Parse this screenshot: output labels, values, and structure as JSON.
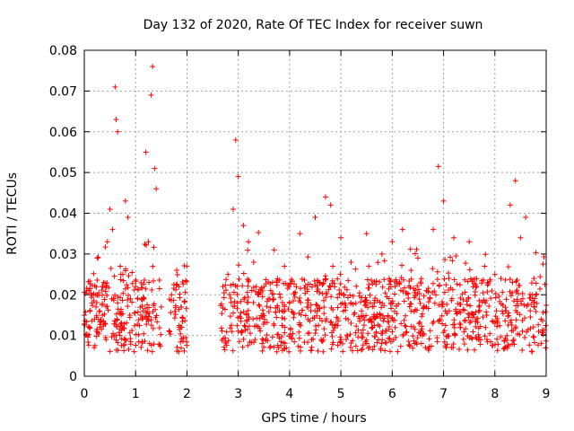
{
  "chart_data": {
    "type": "scatter",
    "title": "Day 132 of 2020, Rate Of TEC Index for receiver suwn",
    "xlabel": "GPS time / hours",
    "ylabel": "ROTI / TECUs",
    "xlim": [
      0,
      9
    ],
    "ylim": [
      0,
      0.08
    ],
    "x_ticks": [
      "0",
      "1",
      "2",
      "3",
      "4",
      "5",
      "6",
      "7",
      "8",
      "9"
    ],
    "y_ticks": [
      "0",
      "0.01",
      "0.02",
      "0.03",
      "0.04",
      "0.05",
      "0.06",
      "0.07",
      "0.08"
    ],
    "grid": true,
    "marker": "+",
    "color": "#ff0000",
    "data_gap_hours": [
      2.0,
      2.65
    ],
    "series": [
      {
        "name": "ROTI",
        "points": [
          [
            0.0,
            0.015
          ],
          [
            0.05,
            0.021
          ],
          [
            0.1,
            0.012
          ],
          [
            0.15,
            0.018
          ],
          [
            0.2,
            0.014
          ],
          [
            0.25,
            0.029
          ],
          [
            0.3,
            0.016
          ],
          [
            0.35,
            0.022
          ],
          [
            0.4,
            0.013
          ],
          [
            0.45,
            0.033
          ],
          [
            0.5,
            0.041
          ],
          [
            0.55,
            0.036
          ],
          [
            0.6,
            0.071
          ],
          [
            0.62,
            0.063
          ],
          [
            0.65,
            0.06
          ],
          [
            0.7,
            0.027
          ],
          [
            0.75,
            0.025
          ],
          [
            0.8,
            0.043
          ],
          [
            0.85,
            0.039
          ],
          [
            0.9,
            0.019
          ],
          [
            1.0,
            0.022
          ],
          [
            1.1,
            0.015
          ],
          [
            1.2,
            0.055
          ],
          [
            1.25,
            0.033
          ],
          [
            1.3,
            0.069
          ],
          [
            1.33,
            0.076
          ],
          [
            1.37,
            0.051
          ],
          [
            1.4,
            0.046
          ],
          [
            1.5,
            0.017
          ],
          [
            1.7,
            0.02
          ],
          [
            1.8,
            0.026
          ],
          [
            1.9,
            0.012
          ],
          [
            2.7,
            0.022
          ],
          [
            2.8,
            0.025
          ],
          [
            2.9,
            0.041
          ],
          [
            2.95,
            0.058
          ],
          [
            3.0,
            0.049
          ],
          [
            3.1,
            0.037
          ],
          [
            3.2,
            0.033
          ],
          [
            3.3,
            0.028
          ],
          [
            3.5,
            0.022
          ],
          [
            3.7,
            0.031
          ],
          [
            3.9,
            0.027
          ],
          [
            4.0,
            0.018
          ],
          [
            4.2,
            0.035
          ],
          [
            4.5,
            0.039
          ],
          [
            4.7,
            0.044
          ],
          [
            4.8,
            0.042
          ],
          [
            5.0,
            0.034
          ],
          [
            5.2,
            0.028
          ],
          [
            5.5,
            0.035
          ],
          [
            5.8,
            0.03
          ],
          [
            6.0,
            0.033
          ],
          [
            6.2,
            0.036
          ],
          [
            6.5,
            0.029
          ],
          [
            6.8,
            0.036
          ],
          [
            6.9,
            0.0515
          ],
          [
            7.0,
            0.043
          ],
          [
            7.2,
            0.034
          ],
          [
            7.5,
            0.033
          ],
          [
            7.8,
            0.027
          ],
          [
            8.0,
            0.025
          ],
          [
            8.3,
            0.042
          ],
          [
            8.4,
            0.048
          ],
          [
            8.5,
            0.034
          ],
          [
            8.6,
            0.039
          ],
          [
            8.8,
            0.02
          ],
          [
            8.9,
            0.014
          ]
        ]
      }
    ]
  }
}
